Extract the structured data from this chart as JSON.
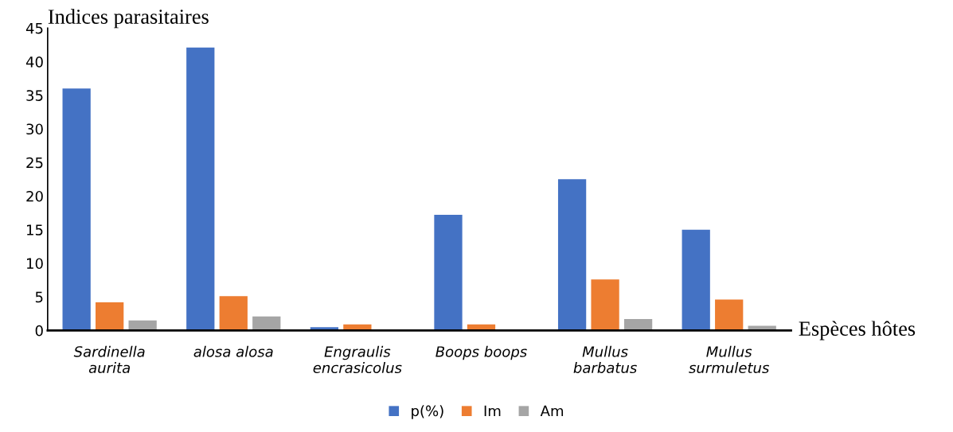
{
  "chart_data": {
    "type": "bar",
    "ylabel": "Indices parasitaires",
    "xlabel": "Espèces hôtes",
    "categories": [
      "Sardinella\naurita",
      "alosa alosa",
      "Engraulis\nencrasicolus",
      "Boops boops",
      "Mullus\nbarbatus",
      "Mullus\nsurmuletus"
    ],
    "series": [
      {
        "name": "p(%)",
        "color": "#4472c4",
        "values": [
          36.0,
          42.1,
          0.5,
          17.2,
          22.5,
          15.0
        ]
      },
      {
        "name": "Im",
        "color": "#ed7d31",
        "values": [
          4.2,
          5.1,
          0.9,
          0.9,
          7.6,
          4.6
        ]
      },
      {
        "name": "Am",
        "color": "#a5a5a5",
        "values": [
          1.5,
          2.1,
          null,
          null,
          1.7,
          0.7
        ]
      }
    ],
    "ylim": [
      0,
      45
    ],
    "yticks": [
      0,
      5,
      10,
      15,
      20,
      25,
      30,
      35,
      40,
      45
    ],
    "grid": false,
    "legend": "bottom"
  }
}
